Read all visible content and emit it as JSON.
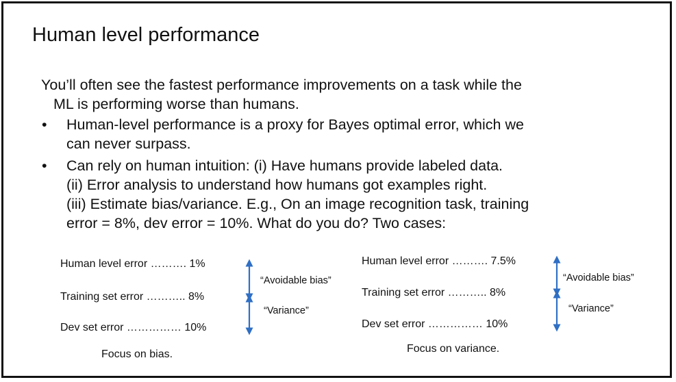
{
  "slide": {
    "title": "Human level performance",
    "intro_line1": "You’ll often see the fastest performance improvements on a task while the",
    "intro_line2": "ML is performing worse than humans.",
    "bullets": [
      {
        "marker": "•",
        "lines": [
          "Human-level performance is a proxy for Bayes optimal error, which we",
          "can never surpass."
        ]
      },
      {
        "marker": "•",
        "lines": [
          "Can rely on human intuition: (i) Have humans provide labeled data.",
          "(ii) Error analysis to understand how humans got examples right.",
          "(iii) Estimate bias/variance. E.g., On an image recognition task, training",
          "error = 8%, dev error = 10%. What do you do? Two cases:"
        ]
      }
    ]
  },
  "cases": [
    {
      "rows": [
        "Human level error ………. 1%",
        "Training set error ……….. 8%",
        "Dev set error …………… 10%"
      ],
      "annotations": [
        "“Avoidable bias”",
        "“Variance”"
      ],
      "conclusion": "Focus on bias."
    },
    {
      "rows": [
        "Human level error ………. 7.5%",
        "Training set error ……….. 8%",
        "Dev set error …………… 10%"
      ],
      "annotations": [
        "“Avoidable bias”",
        "“Variance”"
      ],
      "conclusion": "Focus on variance."
    }
  ],
  "colors": {
    "arrow": "#2f6fc4",
    "text": "#111111",
    "border": "#111111"
  }
}
